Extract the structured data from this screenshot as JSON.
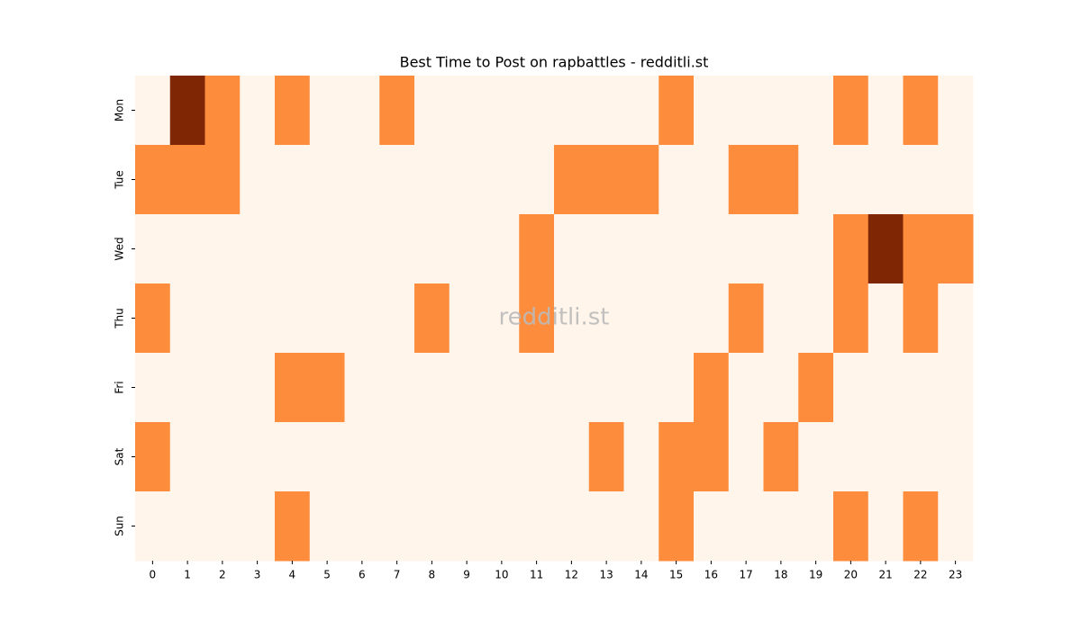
{
  "chart_data": {
    "type": "heatmap",
    "title": "Best Time to Post on rapbattles - redditli.st",
    "watermark": "redditli.st",
    "columns": [
      0,
      1,
      2,
      3,
      4,
      5,
      6,
      7,
      8,
      9,
      10,
      11,
      12,
      13,
      14,
      15,
      16,
      17,
      18,
      19,
      20,
      21,
      22,
      23
    ],
    "rows": [
      "Mon",
      "Tue",
      "Wed",
      "Thu",
      "Fri",
      "Sat",
      "Sun"
    ],
    "values": [
      [
        0,
        2,
        1,
        0,
        1,
        0,
        0,
        1,
        0,
        0,
        0,
        0,
        0,
        0,
        0,
        1,
        0,
        0,
        0,
        0,
        1,
        0,
        1,
        0
      ],
      [
        1,
        1,
        1,
        0,
        0,
        0,
        0,
        0,
        0,
        0,
        0,
        0,
        1,
        1,
        1,
        0,
        0,
        1,
        1,
        0,
        0,
        0,
        0,
        0
      ],
      [
        0,
        0,
        0,
        0,
        0,
        0,
        0,
        0,
        0,
        0,
        0,
        1,
        0,
        0,
        0,
        0,
        0,
        0,
        0,
        0,
        1,
        2,
        1,
        1
      ],
      [
        1,
        0,
        0,
        0,
        0,
        0,
        0,
        0,
        1,
        0,
        0,
        1,
        0,
        0,
        0,
        0,
        0,
        1,
        0,
        0,
        1,
        0,
        1,
        0
      ],
      [
        0,
        0,
        0,
        0,
        1,
        1,
        0,
        0,
        0,
        0,
        0,
        0,
        0,
        0,
        0,
        0,
        1,
        0,
        0,
        1,
        0,
        0,
        0,
        0
      ],
      [
        1,
        0,
        0,
        0,
        0,
        0,
        0,
        0,
        0,
        0,
        0,
        0,
        0,
        1,
        0,
        1,
        1,
        0,
        1,
        0,
        0,
        0,
        0,
        0
      ],
      [
        0,
        0,
        0,
        0,
        1,
        0,
        0,
        0,
        0,
        0,
        0,
        0,
        0,
        0,
        0,
        1,
        0,
        0,
        0,
        0,
        1,
        0,
        1,
        0
      ]
    ],
    "colorscale": [
      "#fff5eb",
      "#fd8d3c",
      "#7f2704"
    ]
  }
}
